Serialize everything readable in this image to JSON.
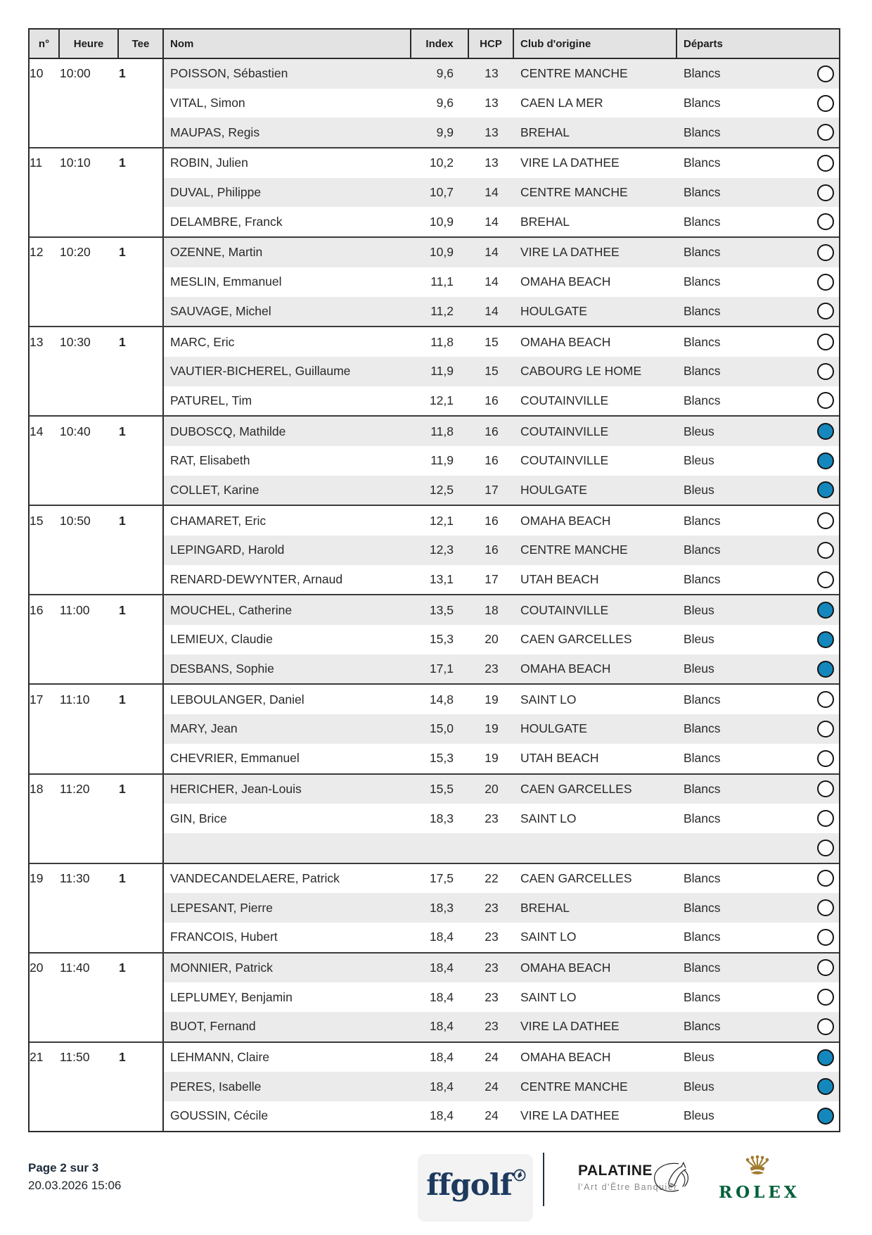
{
  "table": {
    "columns": [
      "n°",
      "Heure",
      "Tee",
      "Nom",
      "Index",
      "HCP",
      "Club d'origine",
      "Départs"
    ],
    "depart_colors": {
      "Blancs": "#ffffff",
      "Bleus": "#1488bd"
    },
    "groups": [
      {
        "num": "10",
        "time": "10:00",
        "tee": "1",
        "players": [
          {
            "name": "POISSON, Sébastien",
            "index": "9,6",
            "hcp": "13",
            "club": "CENTRE MANCHE",
            "depart": "Blancs"
          },
          {
            "name": "VITAL, Simon",
            "index": "9,6",
            "hcp": "13",
            "club": "CAEN LA MER",
            "depart": "Blancs"
          },
          {
            "name": "MAUPAS, Regis",
            "index": "9,9",
            "hcp": "13",
            "club": "BREHAL",
            "depart": "Blancs"
          }
        ]
      },
      {
        "num": "11",
        "time": "10:10",
        "tee": "1",
        "players": [
          {
            "name": "ROBIN, Julien",
            "index": "10,2",
            "hcp": "13",
            "club": "VIRE LA DATHEE",
            "depart": "Blancs"
          },
          {
            "name": "DUVAL, Philippe",
            "index": "10,7",
            "hcp": "14",
            "club": "CENTRE MANCHE",
            "depart": "Blancs"
          },
          {
            "name": "DELAMBRE, Franck",
            "index": "10,9",
            "hcp": "14",
            "club": "BREHAL",
            "depart": "Blancs"
          }
        ]
      },
      {
        "num": "12",
        "time": "10:20",
        "tee": "1",
        "players": [
          {
            "name": "OZENNE, Martin",
            "index": "10,9",
            "hcp": "14",
            "club": "VIRE LA DATHEE",
            "depart": "Blancs"
          },
          {
            "name": "MESLIN, Emmanuel",
            "index": "11,1",
            "hcp": "14",
            "club": "OMAHA BEACH",
            "depart": "Blancs"
          },
          {
            "name": "SAUVAGE, Michel",
            "index": "11,2",
            "hcp": "14",
            "club": "HOULGATE",
            "depart": "Blancs"
          }
        ]
      },
      {
        "num": "13",
        "time": "10:30",
        "tee": "1",
        "players": [
          {
            "name": "MARC, Eric",
            "index": "11,8",
            "hcp": "15",
            "club": "OMAHA BEACH",
            "depart": "Blancs"
          },
          {
            "name": "VAUTIER-BICHEREL, Guillaume",
            "index": "11,9",
            "hcp": "15",
            "club": "CABOURG LE HOME",
            "depart": "Blancs"
          },
          {
            "name": "PATUREL, Tim",
            "index": "12,1",
            "hcp": "16",
            "club": "COUTAINVILLE",
            "depart": "Blancs"
          }
        ]
      },
      {
        "num": "14",
        "time": "10:40",
        "tee": "1",
        "players": [
          {
            "name": "DUBOSCQ, Mathilde",
            "index": "11,8",
            "hcp": "16",
            "club": "COUTAINVILLE",
            "depart": "Bleus"
          },
          {
            "name": "RAT, Elisabeth",
            "index": "11,9",
            "hcp": "16",
            "club": "COUTAINVILLE",
            "depart": "Bleus"
          },
          {
            "name": "COLLET, Karine",
            "index": "12,5",
            "hcp": "17",
            "club": "HOULGATE",
            "depart": "Bleus"
          }
        ]
      },
      {
        "num": "15",
        "time": "10:50",
        "tee": "1",
        "players": [
          {
            "name": "CHAMARET, Eric",
            "index": "12,1",
            "hcp": "16",
            "club": "OMAHA BEACH",
            "depart": "Blancs"
          },
          {
            "name": "LEPINGARD, Harold",
            "index": "12,3",
            "hcp": "16",
            "club": "CENTRE MANCHE",
            "depart": "Blancs"
          },
          {
            "name": "RENARD-DEWYNTER, Arnaud",
            "index": "13,1",
            "hcp": "17",
            "club": "UTAH BEACH",
            "depart": "Blancs"
          }
        ]
      },
      {
        "num": "16",
        "time": "11:00",
        "tee": "1",
        "players": [
          {
            "name": "MOUCHEL, Catherine",
            "index": "13,5",
            "hcp": "18",
            "club": "COUTAINVILLE",
            "depart": "Bleus"
          },
          {
            "name": "LEMIEUX, Claudie",
            "index": "15,3",
            "hcp": "20",
            "club": "CAEN GARCELLES",
            "depart": "Bleus"
          },
          {
            "name": "DESBANS, Sophie",
            "index": "17,1",
            "hcp": "23",
            "club": "OMAHA BEACH",
            "depart": "Bleus"
          }
        ]
      },
      {
        "num": "17",
        "time": "11:10",
        "tee": "1",
        "players": [
          {
            "name": "LEBOULANGER, Daniel",
            "index": "14,8",
            "hcp": "19",
            "club": "SAINT LO",
            "depart": "Blancs"
          },
          {
            "name": "MARY, Jean",
            "index": "15,0",
            "hcp": "19",
            "club": "HOULGATE",
            "depart": "Blancs"
          },
          {
            "name": "CHEVRIER, Emmanuel",
            "index": "15,3",
            "hcp": "19",
            "club": "UTAH BEACH",
            "depart": "Blancs"
          }
        ]
      },
      {
        "num": "18",
        "time": "11:20",
        "tee": "1",
        "players": [
          {
            "name": "HERICHER, Jean-Louis",
            "index": "15,5",
            "hcp": "20",
            "club": "CAEN GARCELLES",
            "depart": "Blancs"
          },
          {
            "name": "GIN, Brice",
            "index": "18,3",
            "hcp": "23",
            "club": "SAINT LO",
            "depart": "Blancs"
          },
          {
            "name": "",
            "index": "",
            "hcp": "",
            "club": "",
            "depart": ""
          }
        ]
      },
      {
        "num": "19",
        "time": "11:30",
        "tee": "1",
        "players": [
          {
            "name": "VANDECANDELAERE, Patrick",
            "index": "17,5",
            "hcp": "22",
            "club": "CAEN GARCELLES",
            "depart": "Blancs"
          },
          {
            "name": "LEPESANT, Pierre",
            "index": "18,3",
            "hcp": "23",
            "club": "BREHAL",
            "depart": "Blancs"
          },
          {
            "name": "FRANCOIS, Hubert",
            "index": "18,4",
            "hcp": "23",
            "club": "SAINT LO",
            "depart": "Blancs"
          }
        ]
      },
      {
        "num": "20",
        "time": "11:40",
        "tee": "1",
        "players": [
          {
            "name": "MONNIER, Patrick",
            "index": "18,4",
            "hcp": "23",
            "club": "OMAHA BEACH",
            "depart": "Blancs"
          },
          {
            "name": "LEPLUMEY, Benjamin",
            "index": "18,4",
            "hcp": "23",
            "club": "SAINT LO",
            "depart": "Blancs"
          },
          {
            "name": "BUOT, Fernand",
            "index": "18,4",
            "hcp": "23",
            "club": "VIRE LA DATHEE",
            "depart": "Blancs"
          }
        ]
      },
      {
        "num": "21",
        "time": "11:50",
        "tee": "1",
        "players": [
          {
            "name": "LEHMANN, Claire",
            "index": "18,4",
            "hcp": "24",
            "club": "OMAHA BEACH",
            "depart": "Bleus"
          },
          {
            "name": "PERES, Isabelle",
            "index": "18,4",
            "hcp": "24",
            "club": "CENTRE MANCHE",
            "depart": "Bleus"
          },
          {
            "name": "GOUSSIN, Cécile",
            "index": "18,4",
            "hcp": "24",
            "club": "VIRE LA DATHEE",
            "depart": "Bleus"
          }
        ]
      }
    ]
  },
  "footer": {
    "page_label": "Page 2 sur 3",
    "datetime": "20.03.2026 15:06"
  },
  "logos": {
    "ffgolf": {
      "text": "ffgolf",
      "color": "#1d3a5e"
    },
    "palatine": {
      "name": "PALATINE",
      "tagline": "l'Art d'Être Banquier"
    },
    "rolex": {
      "name": "ROLEX",
      "green": "#006039",
      "gold": "#a07b2f"
    }
  }
}
